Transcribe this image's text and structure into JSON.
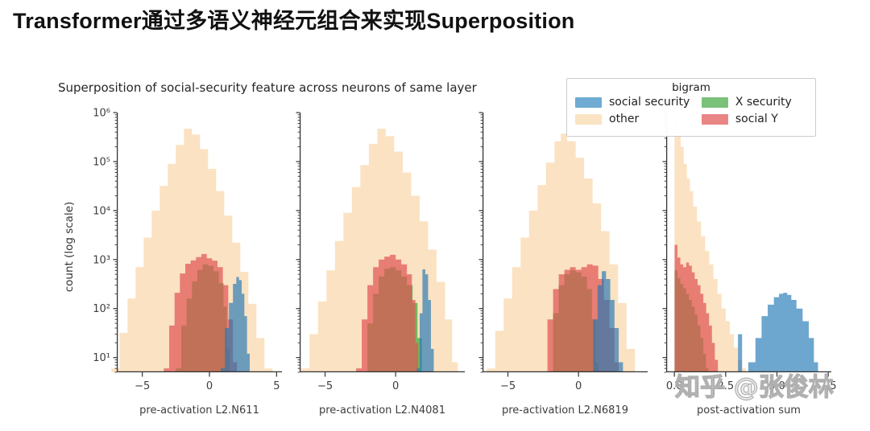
{
  "page": {
    "title": "Transformer通过多语义神经元组合来实现Superposition",
    "watermark": "知乎 @张俊林"
  },
  "chart_data": {
    "type": "histogram-grid",
    "title": "Superposition of social-security feature across neurons of same layer",
    "ylabel": "count (log scale)",
    "yscale": "log",
    "ylim": [
      5,
      1000000
    ],
    "grid": false,
    "ytick_values": [
      10,
      100,
      1000,
      10000,
      100000,
      1000000
    ],
    "ytick_labels": [
      "10¹",
      "10²",
      "10³",
      "10⁴",
      "10⁵",
      "10⁶"
    ],
    "legend": {
      "position": "upper right",
      "title": "bigram",
      "entries": [
        {
          "label": "social security",
          "series": "social_security",
          "swatch": "#6fabd3"
        },
        {
          "label": "X security",
          "series": "x_security",
          "swatch": "#7ac17a"
        },
        {
          "label": "other",
          "series": "other",
          "swatch": "#fae3c3"
        },
        {
          "label": "social Y",
          "series": "social_y",
          "swatch": "#e98585"
        }
      ]
    },
    "style": {
      "draw_order": [
        "other",
        "x_security",
        "social_y",
        "social_security"
      ],
      "colors": {
        "other": "#fbe2c2",
        "x_security": "#2ca02c",
        "social_y": "#e05252",
        "social_security": "#1f77b4"
      },
      "opacity": {
        "other": 1,
        "x_security": 0.65,
        "social_y": 0.7,
        "social_security": 0.65
      }
    },
    "subplots": [
      {
        "xlabel": "pre-activation L2.N611",
        "xlim": [
          -6.9,
          5.4
        ],
        "xticks": [
          -5,
          0,
          5
        ],
        "xtick_labels": [
          "−5",
          "0",
          "5"
        ],
        "show_ytick_labels": true,
        "series": {
          "other": [
            [
              -7.0,
              6
            ],
            [
              -6.4,
              32
            ],
            [
              -5.8,
              160
            ],
            [
              -5.2,
              700
            ],
            [
              -4.6,
              2800
            ],
            [
              -4.0,
              10000
            ],
            [
              -3.4,
              32000
            ],
            [
              -2.8,
              90000
            ],
            [
              -2.2,
              220000
            ],
            [
              -1.6,
              470000
            ],
            [
              -1.0,
              355000
            ],
            [
              -0.4,
              180000
            ],
            [
              0.2,
              71000
            ],
            [
              0.8,
              25000
            ],
            [
              1.4,
              7900
            ],
            [
              2.0,
              2200
            ],
            [
              2.6,
              560
            ],
            [
              3.2,
              125
            ],
            [
              3.8,
              25
            ],
            [
              4.4,
              6
            ]
          ],
          "x_security": [
            [
              -2.3,
              6
            ],
            [
              -1.9,
              45
            ],
            [
              -1.5,
              160
            ],
            [
              -1.1,
              360
            ],
            [
              -0.7,
              620
            ],
            [
              -0.3,
              800
            ],
            [
              0.1,
              740
            ],
            [
              0.5,
              580
            ],
            [
              0.9,
              330
            ],
            [
              1.2,
              110
            ],
            [
              1.4,
              15
            ]
          ],
          "social_y": [
            [
              -3.2,
              6
            ],
            [
              -2.8,
              45
            ],
            [
              -2.4,
              210
            ],
            [
              -2.0,
              520
            ],
            [
              -1.6,
              820
            ],
            [
              -1.2,
              960
            ],
            [
              -0.8,
              1120
            ],
            [
              -0.4,
              1300
            ],
            [
              0.0,
              1060
            ],
            [
              0.4,
              950
            ],
            [
              0.8,
              700
            ],
            [
              1.2,
              300
            ],
            [
              1.6,
              60
            ],
            [
              1.9,
              8
            ]
          ],
          "social_security": [
            [
              1.0,
              6
            ],
            [
              1.3,
              40
            ],
            [
              1.6,
              130
            ],
            [
              1.9,
              320
            ],
            [
              2.1,
              440
            ],
            [
              2.3,
              380
            ],
            [
              2.5,
              200
            ],
            [
              2.7,
              70
            ],
            [
              2.9,
              12
            ]
          ]
        }
      },
      {
        "xlabel": "pre-activation L2.N4081",
        "xlim": [
          -6.8,
          4.9
        ],
        "xticks": [
          -5,
          0
        ],
        "xtick_labels": [
          "−5",
          "0"
        ],
        "show_ytick_labels": false,
        "series": {
          "other": [
            [
              -6.4,
              6
            ],
            [
              -5.8,
              30
            ],
            [
              -5.2,
              140
            ],
            [
              -4.6,
              600
            ],
            [
              -4.0,
              2400
            ],
            [
              -3.4,
              9000
            ],
            [
              -2.8,
              30000
            ],
            [
              -2.2,
              85000
            ],
            [
              -1.6,
              230000
            ],
            [
              -1.0,
              470000
            ],
            [
              -0.4,
              330000
            ],
            [
              0.2,
              160000
            ],
            [
              0.8,
              60000
            ],
            [
              1.4,
              20000
            ],
            [
              2.0,
              6000
            ],
            [
              2.6,
              1600
            ],
            [
              3.2,
              350
            ],
            [
              3.8,
              60
            ],
            [
              4.2,
              8
            ]
          ],
          "x_security": [
            [
              -2.2,
              5
            ],
            [
              -1.8,
              50
            ],
            [
              -1.4,
              200
            ],
            [
              -1.0,
              450
            ],
            [
              -0.6,
              650
            ],
            [
              -0.2,
              700
            ],
            [
              0.2,
              600
            ],
            [
              0.6,
              450
            ],
            [
              1.0,
              300
            ],
            [
              1.4,
              130
            ],
            [
              1.7,
              25
            ]
          ],
          "social_y": [
            [
              -2.6,
              6
            ],
            [
              -2.2,
              60
            ],
            [
              -1.8,
              300
            ],
            [
              -1.4,
              700
            ],
            [
              -1.0,
              1000
            ],
            [
              -0.6,
              1150
            ],
            [
              -0.2,
              1250
            ],
            [
              0.2,
              1000
            ],
            [
              0.6,
              800
            ],
            [
              1.0,
              500
            ],
            [
              1.3,
              150
            ],
            [
              1.5,
              20
            ]
          ],
          "social_security": [
            [
              1.6,
              6
            ],
            [
              1.8,
              80
            ],
            [
              2.0,
              630
            ],
            [
              2.2,
              500
            ],
            [
              2.4,
              150
            ],
            [
              2.6,
              15
            ]
          ]
        }
      },
      {
        "xlabel": "pre-activation L2.N6819",
        "xlim": [
          -6.8,
          4.9
        ],
        "xticks": [
          -5,
          0
        ],
        "xtick_labels": [
          "−5",
          "0"
        ],
        "show_ytick_labels": false,
        "series": {
          "other": [
            [
              -6.2,
              6
            ],
            [
              -5.6,
              35
            ],
            [
              -5.0,
              160
            ],
            [
              -4.4,
              700
            ],
            [
              -3.8,
              2800
            ],
            [
              -3.2,
              10000
            ],
            [
              -2.6,
              33000
            ],
            [
              -2.0,
              95000
            ],
            [
              -1.4,
              260000
            ],
            [
              -1.1,
              370000
            ],
            [
              -0.5,
              260000
            ],
            [
              0.1,
              120000
            ],
            [
              0.7,
              45000
            ],
            [
              1.3,
              14000
            ],
            [
              1.9,
              3800
            ],
            [
              2.5,
              800
            ],
            [
              3.1,
              130
            ],
            [
              3.7,
              15
            ]
          ],
          "x_security": [
            [
              -2.0,
              5
            ],
            [
              -1.6,
              80
            ],
            [
              -1.2,
              300
            ],
            [
              -0.8,
              500
            ],
            [
              -0.4,
              600
            ],
            [
              0.0,
              550
            ],
            [
              0.4,
              450
            ],
            [
              0.8,
              250
            ],
            [
              1.1,
              60
            ],
            [
              1.3,
              8
            ]
          ],
          "social_y": [
            [
              -2.4,
              5
            ],
            [
              -2.0,
              60
            ],
            [
              -1.6,
              250
            ],
            [
              -1.2,
              500
            ],
            [
              -0.8,
              620
            ],
            [
              -0.4,
              700
            ],
            [
              0.0,
              620
            ],
            [
              0.4,
              700
            ],
            [
              0.8,
              800
            ],
            [
              1.2,
              750
            ],
            [
              1.6,
              400
            ],
            [
              2.0,
              150
            ],
            [
              2.4,
              40
            ],
            [
              2.7,
              8
            ]
          ],
          "social_security": [
            [
              0.9,
              5
            ],
            [
              1.2,
              60
            ],
            [
              1.5,
              300
            ],
            [
              1.8,
              580
            ],
            [
              2.1,
              400
            ],
            [
              2.4,
              150
            ],
            [
              2.7,
              40
            ],
            [
              3.0,
              8
            ]
          ]
        }
      },
      {
        "xlabel": "post-activation sum",
        "xlim": [
          -0.4,
          7.65
        ],
        "xticks": [
          0,
          2.5,
          5,
          7.5
        ],
        "xtick_labels": [
          "0.0",
          "2.5",
          "5.0",
          "7.5"
        ],
        "show_ytick_labels": false,
        "series": {
          "other": [
            [
              0.08,
              900000
            ],
            [
              0.23,
              500000
            ],
            [
              0.38,
              200000
            ],
            [
              0.53,
              90000
            ],
            [
              0.68,
              45000
            ],
            [
              0.83,
              25000
            ],
            [
              1.0,
              12000
            ],
            [
              1.2,
              6000
            ],
            [
              1.4,
              3000
            ],
            [
              1.6,
              1500
            ],
            [
              1.8,
              800
            ],
            [
              2.0,
              400
            ],
            [
              2.2,
              200
            ],
            [
              2.4,
              100
            ],
            [
              2.6,
              55
            ],
            [
              2.8,
              30
            ],
            [
              3.0,
              16
            ],
            [
              3.2,
              9
            ],
            [
              3.4,
              6
            ]
          ],
          "x_security": [
            [
              0.08,
              600
            ],
            [
              0.22,
              420
            ],
            [
              0.36,
              320
            ],
            [
              0.5,
              260
            ],
            [
              0.64,
              200
            ],
            [
              0.78,
              150
            ],
            [
              0.92,
              110
            ],
            [
              1.06,
              75
            ],
            [
              1.2,
              45
            ],
            [
              1.34,
              25
            ],
            [
              1.48,
              12
            ],
            [
              1.6,
              6
            ]
          ],
          "social_y": [
            [
              0.08,
              2000
            ],
            [
              0.22,
              1100
            ],
            [
              0.36,
              800
            ],
            [
              0.5,
              700
            ],
            [
              0.64,
              870
            ],
            [
              0.78,
              750
            ],
            [
              0.92,
              550
            ],
            [
              1.06,
              400
            ],
            [
              1.2,
              300
            ],
            [
              1.34,
              200
            ],
            [
              1.48,
              130
            ],
            [
              1.62,
              80
            ],
            [
              1.76,
              45
            ],
            [
              1.9,
              20
            ],
            [
              2.04,
              9
            ],
            [
              2.2,
              5
            ]
          ],
          "social_security": [
            [
              3.2,
              30
            ],
            [
              3.4,
              4
            ],
            [
              3.8,
              8
            ],
            [
              4.1,
              25
            ],
            [
              4.4,
              70
            ],
            [
              4.7,
              120
            ],
            [
              5.0,
              170
            ],
            [
              5.2,
              200
            ],
            [
              5.4,
              210
            ],
            [
              5.6,
              190
            ],
            [
              5.8,
              150
            ],
            [
              6.1,
              100
            ],
            [
              6.4,
              55
            ],
            [
              6.7,
              25
            ],
            [
              6.9,
              8
            ]
          ]
        }
      }
    ]
  }
}
